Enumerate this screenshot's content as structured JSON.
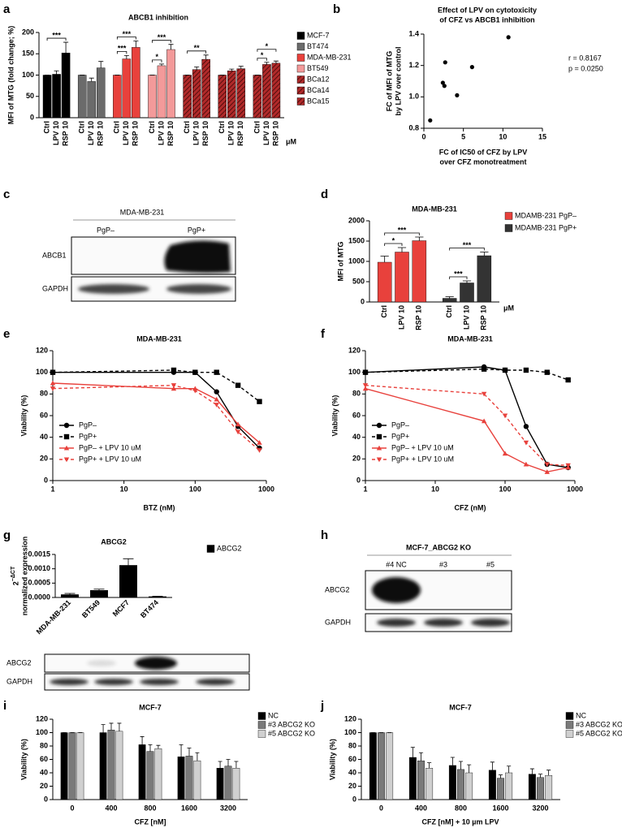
{
  "chart_data": [
    {
      "panel": "a",
      "type": "bar",
      "title": "ABCB1 inhibition",
      "ylabel": "MFI of MTG (fold change; %)",
      "categories": [
        "Ctrl",
        "LPV 10",
        "RSP 10"
      ],
      "group_by": "series",
      "unit": "μM",
      "ylim": [
        0,
        200
      ],
      "yticks": [
        0,
        50,
        100,
        150,
        200
      ],
      "series": [
        {
          "name": "MCF-7",
          "color": "#000000",
          "values": [
            100,
            102,
            152
          ],
          "errors": [
            0,
            8,
            25
          ]
        },
        {
          "name": "BT474",
          "color": "#6b6b6b",
          "values": [
            100,
            85,
            117
          ],
          "errors": [
            0,
            8,
            15
          ]
        },
        {
          "name": "MDA-MB-231",
          "color": "#e8413c",
          "values": [
            100,
            138,
            165
          ],
          "errors": [
            0,
            8,
            15
          ]
        },
        {
          "name": "BT549",
          "color": "#f39a9a",
          "values": [
            100,
            122,
            160
          ],
          "errors": [
            0,
            4,
            12
          ]
        },
        {
          "name": "BCa12",
          "color": "#b02a2a",
          "hatch": true,
          "values": [
            100,
            113,
            137
          ],
          "errors": [
            0,
            6,
            10
          ]
        },
        {
          "name": "BCa14",
          "color": "#b02a2a",
          "hatch": true,
          "values": [
            100,
            110,
            115
          ],
          "errors": [
            0,
            4,
            6
          ]
        },
        {
          "name": "BCa15",
          "color": "#b02a2a",
          "hatch": true,
          "values": [
            100,
            125,
            128
          ],
          "errors": [
            0,
            5,
            5
          ]
        }
      ],
      "annotations": [
        {
          "text": "***",
          "series": 0,
          "from": 0,
          "to": 2
        },
        {
          "text": "***",
          "series": 2,
          "from": 0,
          "to": 1
        },
        {
          "text": "***",
          "series": 2,
          "from": 0,
          "to": 2
        },
        {
          "text": "*",
          "series": 3,
          "from": 0,
          "to": 1
        },
        {
          "text": "***",
          "series": 3,
          "from": 0,
          "to": 2
        },
        {
          "text": "**",
          "series": 4,
          "from": 0,
          "to": 2
        },
        {
          "text": "*",
          "series": 6,
          "from": 0,
          "to": 1
        },
        {
          "text": "*",
          "series": 6,
          "from": 0,
          "to": 2
        }
      ]
    },
    {
      "panel": "b",
      "type": "scatter",
      "title": [
        "Effect of LPV on cytotoxicity",
        "of CFZ vs ABCB1 inhibition"
      ],
      "xlabel": [
        "FC of IC50 of CFZ by LPV",
        "over CFZ monotreatment"
      ],
      "ylabel": [
        "FC of MFI of MTG",
        "by LPV over control"
      ],
      "x": [
        0.8,
        2.4,
        2.6,
        2.7,
        4.2,
        6.1,
        10.7
      ],
      "y": [
        0.85,
        1.09,
        1.07,
        1.22,
        1.01,
        1.19,
        1.38
      ],
      "color": "#000000",
      "xlim": [
        0,
        15
      ],
      "xticks": [
        0,
        5,
        10,
        15
      ],
      "ylim": [
        0.8,
        1.4
      ],
      "yticks": [
        0.8,
        {
          "value": 1,
          "label": "1.0"
        },
        1.2,
        1.4
      ],
      "annotations": [
        "r = 0.8167",
        "p = 0.0250"
      ]
    },
    {
      "panel": "d",
      "type": "bar",
      "title": "MDA-MB-231",
      "ylabel": "MFI of MTG",
      "categories": [
        "Ctrl",
        "LPV 10",
        "RSP 10"
      ],
      "group_by": "series",
      "unit": "μM",
      "ylim": [
        0,
        2000
      ],
      "yticks": [
        0,
        500,
        1000,
        1500,
        2000
      ],
      "series": [
        {
          "name": "MDAMB-231 PgP–",
          "color": "#e8413c",
          "values": [
            980,
            1230,
            1510
          ],
          "errors": [
            150,
            110,
            90
          ]
        },
        {
          "name": "MDAMB-231 PgP+",
          "color": "#333333",
          "values": [
            90,
            470,
            1140
          ],
          "errors": [
            40,
            50,
            90
          ]
        }
      ],
      "annotations": [
        {
          "text": "*",
          "series": 0,
          "from": 0,
          "to": 1
        },
        {
          "text": "***",
          "series": 0,
          "from": 0,
          "to": 2
        },
        {
          "text": "***",
          "series": 1,
          "from": 0,
          "to": 1
        },
        {
          "text": "***",
          "series": 1,
          "from": 0,
          "to": 2
        }
      ]
    },
    {
      "panel": "e",
      "type": "line",
      "title": "MDA-MB-231",
      "xlabel": "BTZ (nM)",
      "ylabel": "Viability (%)",
      "xscale": "log",
      "x": [
        1,
        50,
        100,
        200,
        400,
        800
      ],
      "xlim": [
        1,
        1000
      ],
      "xticks": [
        1,
        10,
        100,
        1000
      ],
      "ylim": [
        0,
        120
      ],
      "yticks": [
        0,
        20,
        40,
        60,
        80,
        100,
        120
      ],
      "legend": "lower left",
      "series": [
        {
          "name": "PgP–",
          "color": "#000000",
          "marker": "circle",
          "dash": false,
          "values": [
            100,
            100,
            100,
            82,
            50,
            30
          ]
        },
        {
          "name": "PgP+",
          "color": "#000000",
          "marker": "square",
          "dash": true,
          "values": [
            100,
            102,
            100,
            100,
            88,
            73
          ]
        },
        {
          "name": "PgP– + LPV 10 uM",
          "color": "#e8413c",
          "marker": "triangle",
          "dash": false,
          "values": [
            90,
            85,
            85,
            75,
            52,
            35
          ]
        },
        {
          "name": "PgP+ + LPV 10 uM",
          "color": "#e8413c",
          "marker": "triangle-down",
          "dash": true,
          "values": [
            85,
            88,
            83,
            70,
            45,
            28
          ]
        }
      ]
    },
    {
      "panel": "f",
      "type": "line",
      "title": "MDA-MB-231",
      "xlabel": "CFZ (nM)",
      "ylabel": "Viability (%)",
      "xscale": "log",
      "x": [
        1,
        50,
        100,
        200,
        400,
        800
      ],
      "xlim": [
        1,
        1000
      ],
      "xticks": [
        1,
        10,
        100,
        1000
      ],
      "ylim": [
        0,
        120
      ],
      "yticks": [
        0,
        20,
        40,
        60,
        80,
        100,
        120
      ],
      "legend": "lower left",
      "series": [
        {
          "name": "PgP–",
          "color": "#000000",
          "marker": "circle",
          "dash": false,
          "values": [
            100,
            105,
            102,
            50,
            15,
            12
          ]
        },
        {
          "name": "PgP+",
          "color": "#000000",
          "marker": "square",
          "dash": true,
          "values": [
            100,
            103,
            102,
            102,
            100,
            93
          ]
        },
        {
          "name": "PgP– + LPV 10 uM",
          "color": "#e8413c",
          "marker": "triangle",
          "dash": false,
          "values": [
            85,
            55,
            25,
            15,
            8,
            12
          ]
        },
        {
          "name": "PgP+ + LPV 10 uM",
          "color": "#e8413c",
          "marker": "triangle-down",
          "dash": true,
          "values": [
            88,
            80,
            60,
            35,
            15,
            14
          ]
        }
      ]
    },
    {
      "panel": "g",
      "type": "bar",
      "title": "ABCG2",
      "ylabel": [
        "2",
        "normalized expression"
      ],
      "ylabel_sup": "−ΔCT",
      "categories": [
        "MDA-MB-231",
        "BT549",
        "MCF7",
        "BT474"
      ],
      "group_by": "category",
      "ylim": [
        0,
        0.0015
      ],
      "yticks": [
        {
          "value": 0,
          "label": "0.0000"
        },
        0.0005,
        {
          "value": 0.001,
          "label": "0.0010"
        },
        0.0015
      ],
      "series": [
        {
          "name": "ABCG2",
          "color": "#000000",
          "values": [
            0.0001,
            0.00025,
            0.00112,
            3e-05
          ],
          "errors": [
            4e-05,
            4e-05,
            0.00023,
            1e-05
          ]
        }
      ]
    },
    {
      "panel": "i",
      "type": "bar",
      "title": "MCF-7",
      "xlabel": "CFZ [nM]",
      "ylabel": "Viability (%)",
      "categories": [
        "0",
        "400",
        "800",
        "1600",
        "3200"
      ],
      "group_by": "category",
      "ylim": [
        0,
        120
      ],
      "yticks": [
        0,
        20,
        40,
        60,
        80,
        100,
        120
      ],
      "series": [
        {
          "name": "NC",
          "color": "#000000",
          "values": [
            100,
            100,
            82,
            64,
            47
          ],
          "errors": [
            0,
            12,
            12,
            18,
            10
          ]
        },
        {
          "name": "#3 ABCG2 KO",
          "color": "#7a7a7a",
          "values": [
            100,
            104,
            72,
            65,
            50
          ],
          "errors": [
            0,
            10,
            10,
            12,
            10
          ]
        },
        {
          "name": "#5 ABCG2 KO",
          "color": "#d0d0d0",
          "values": [
            100,
            102,
            76,
            58,
            47
          ],
          "errors": [
            0,
            12,
            5,
            12,
            10
          ]
        }
      ]
    },
    {
      "panel": "j",
      "type": "bar",
      "title": "MCF-7",
      "xlabel": "CFZ [nM] + 10 µm LPV",
      "ylabel": "Viability (%)",
      "categories": [
        "0",
        "400",
        "800",
        "1600",
        "3200"
      ],
      "group_by": "category",
      "ylim": [
        0,
        120
      ],
      "yticks": [
        0,
        20,
        40,
        60,
        80,
        100,
        120
      ],
      "series": [
        {
          "name": "NC",
          "color": "#000000",
          "values": [
            100,
            63,
            51,
            44,
            38
          ],
          "errors": [
            0,
            15,
            12,
            12,
            8
          ]
        },
        {
          "name": "#3 ABCG2 KO",
          "color": "#7a7a7a",
          "values": [
            100,
            58,
            45,
            32,
            33
          ],
          "errors": [
            0,
            12,
            12,
            5,
            5
          ]
        },
        {
          "name": "#5 ABCG2 KO",
          "color": "#d0d0d0",
          "values": [
            100,
            47,
            40,
            40,
            36
          ],
          "errors": [
            0,
            8,
            12,
            10,
            8
          ]
        }
      ]
    }
  ],
  "blots": [
    {
      "panel": "c",
      "title": "MDA-MB-231",
      "lanes": [
        "PgP–",
        "PgP+"
      ],
      "rows": [
        "ABCB1",
        "GAPDH"
      ]
    },
    {
      "rows": [
        "ABCG2",
        "GAPDH"
      ]
    },
    {
      "panel": "h",
      "title": "MCF-7_ABCG2 KO",
      "lanes": [
        "#4 NC",
        "#3",
        "#5"
      ],
      "rows": [
        "ABCG2",
        "GAPDH"
      ]
    }
  ]
}
